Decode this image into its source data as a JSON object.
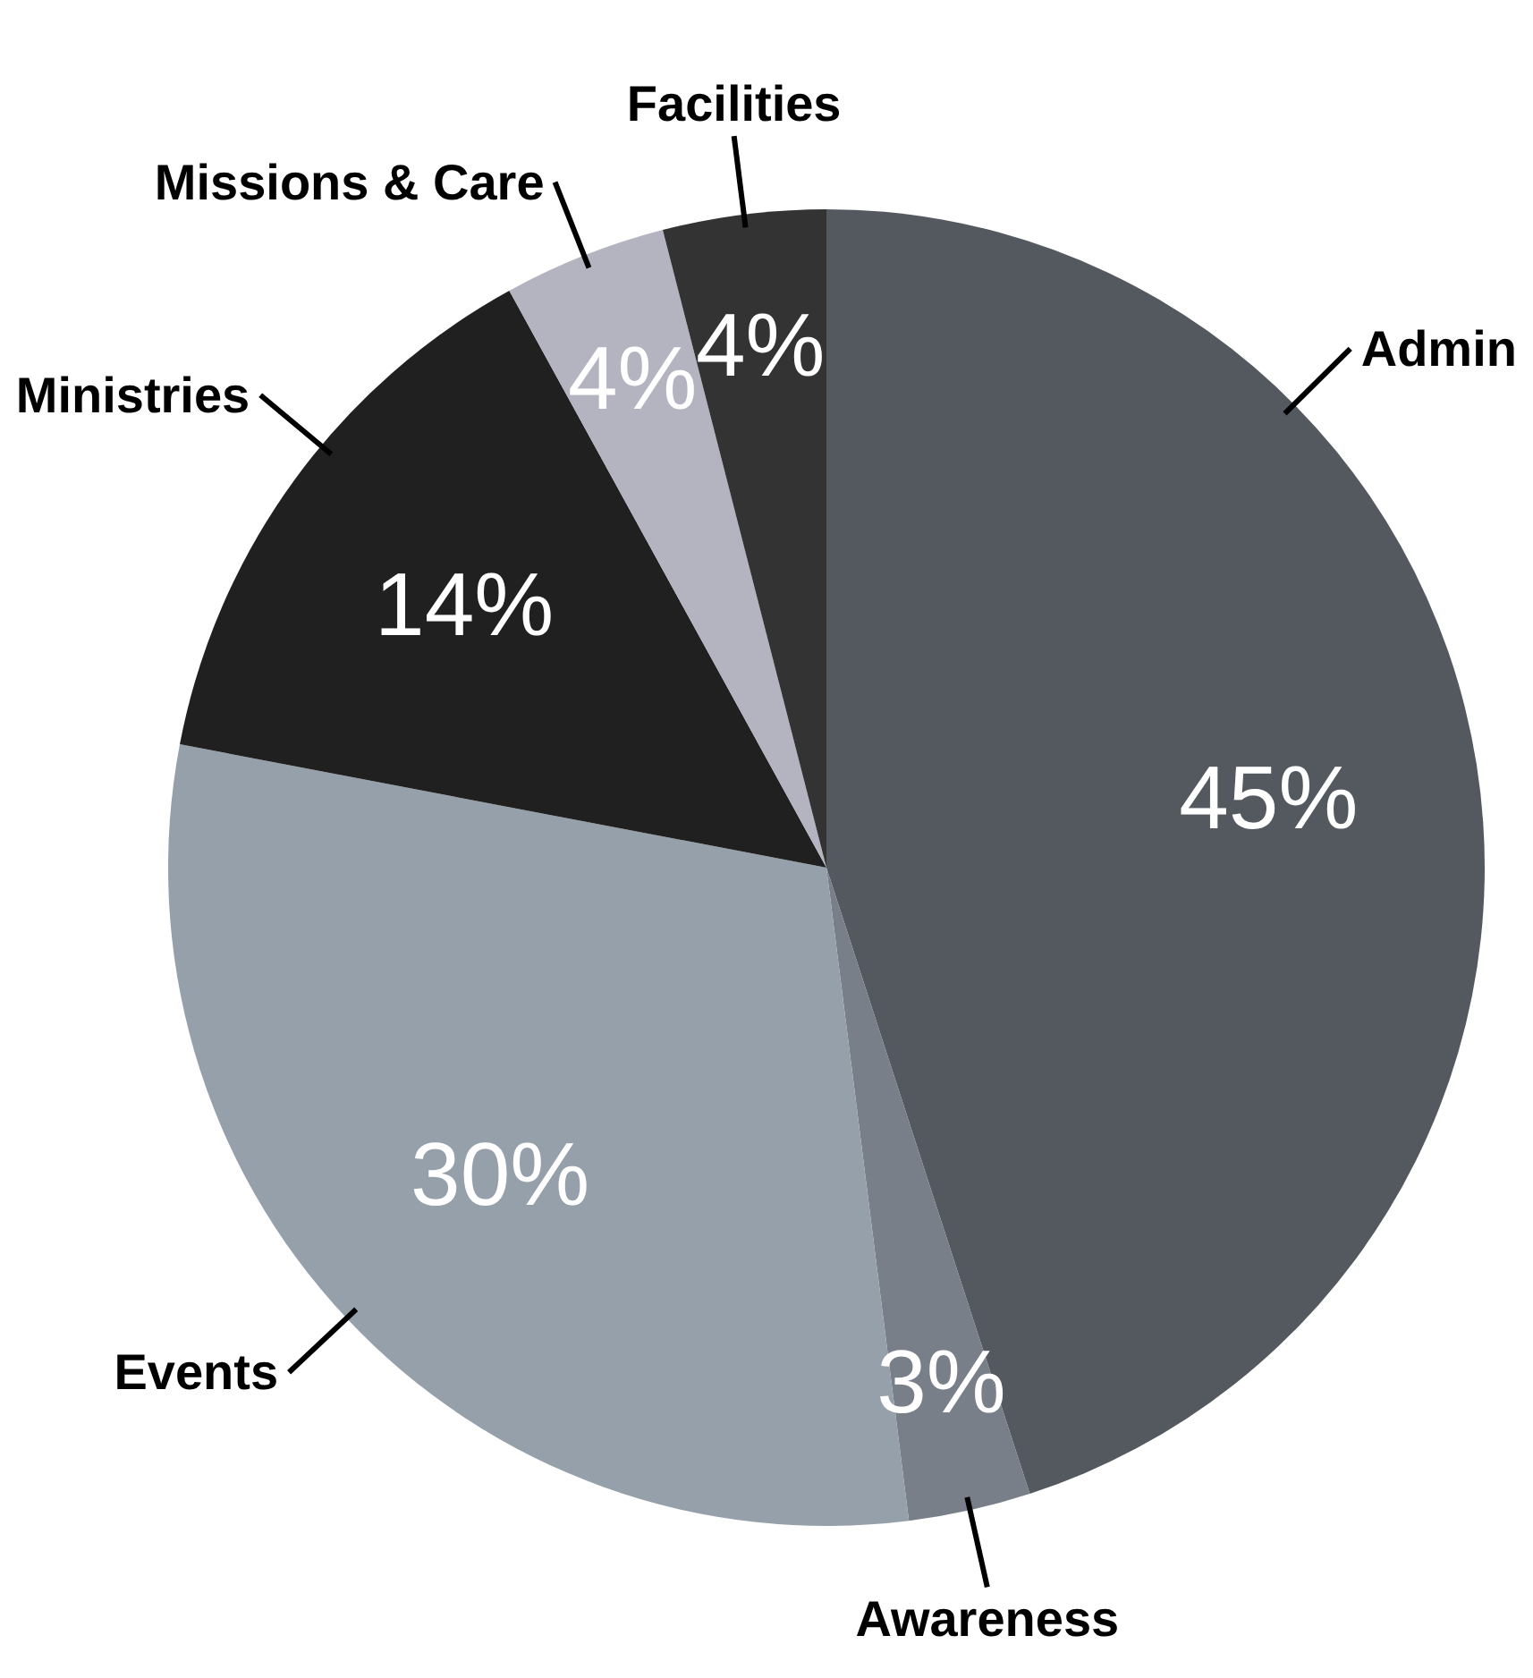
{
  "chart_data": {
    "type": "pie",
    "categories": [
      "Admin",
      "Awareness",
      "Events",
      "Ministries",
      "Missions & Care",
      "Facilities"
    ],
    "values": [
      45,
      3,
      30,
      14,
      4,
      4
    ],
    "value_labels": [
      "45%",
      "3%",
      "30%",
      "14%",
      "4%",
      "4%"
    ],
    "colors": [
      "#545960",
      "#787f88",
      "#96a0aa",
      "#202020",
      "#b4b4c0",
      "#333333"
    ],
    "legend": false
  }
}
